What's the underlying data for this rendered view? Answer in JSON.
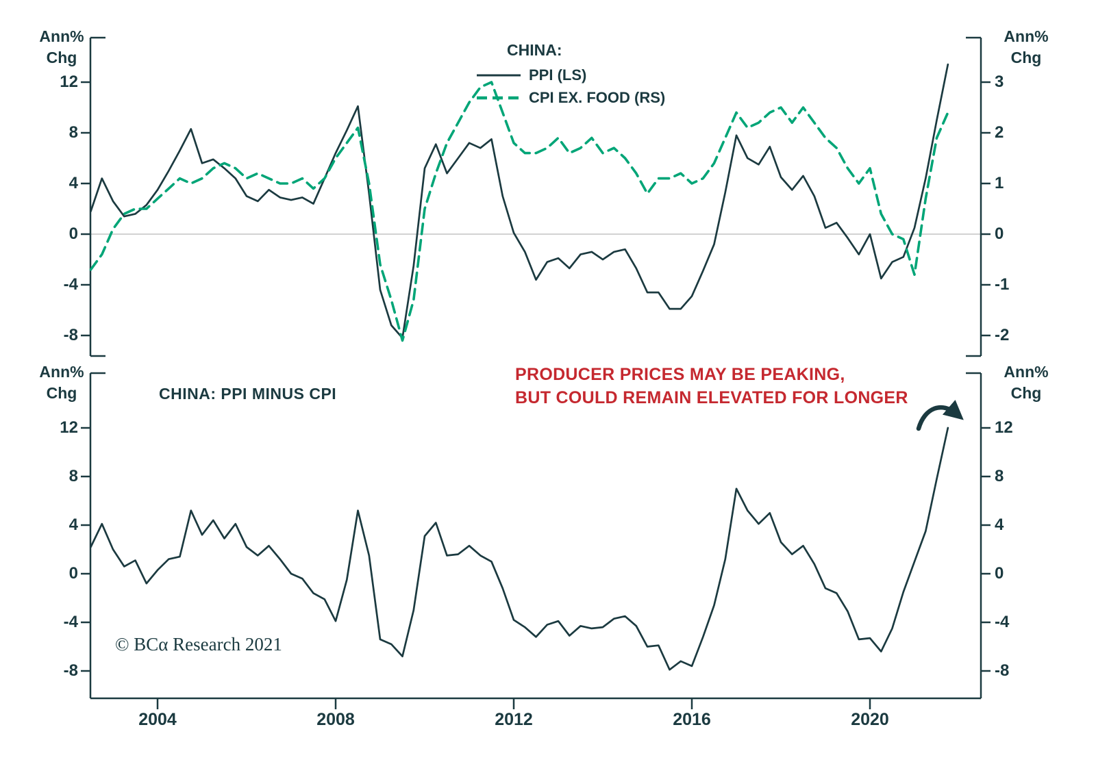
{
  "colors": {
    "dark": "#1B3A40",
    "green": "#00A577",
    "red": "#C5282F",
    "grid": "#C4C4C4"
  },
  "top_panel": {
    "axis_unit_label": [
      "Ann%",
      "Chg"
    ],
    "legend_title": "CHINA:",
    "legend": [
      {
        "label": "PPI (LS)"
      },
      {
        "label": "CPI EX. FOOD (RS)"
      }
    ]
  },
  "bottom_panel": {
    "title": "CHINA: PPI MINUS CPI",
    "axis_unit_label": [
      "Ann%",
      "Chg"
    ]
  },
  "annotation": {
    "line1": "PRODUCER PRICES MAY BE PEAKING,",
    "line2": "BUT COULD REMAIN ELEVATED FOR LONGER"
  },
  "copyright_text": "© BCα Research 2021",
  "chart_data": [
    {
      "type": "line",
      "panel": "top",
      "title": "CHINA: PPI vs CPI EX. FOOD",
      "x_start": 2002.5,
      "x_step": 0.25,
      "x_range": [
        2002.5,
        2022.4
      ],
      "left_axis": {
        "label": "Ann% Chg",
        "ticks": [
          12,
          8,
          4,
          0,
          -4,
          -8
        ]
      },
      "right_axis": {
        "label": "Ann% Chg",
        "ticks": [
          3,
          2,
          1,
          0,
          -1,
          -2
        ]
      },
      "grid": "zero-line-only",
      "legend_position": "top-center",
      "series": [
        {
          "name": "PPI (LS)",
          "axis": "left",
          "style": "solid",
          "values": [
            1.8,
            4.4,
            2.6,
            1.4,
            1.6,
            2.3,
            3.5,
            5.0,
            6.6,
            8.3,
            5.6,
            5.9,
            5.2,
            4.4,
            3.0,
            2.6,
            3.5,
            2.9,
            2.7,
            2.9,
            2.4,
            4.4,
            6.4,
            8.2,
            10.1,
            3.2,
            -4.4,
            -7.2,
            -8.2,
            -2.5,
            5.2,
            7.1,
            4.8,
            6.0,
            7.2,
            6.8,
            7.5,
            3.0,
            0.1,
            -1.4,
            -3.6,
            -2.2,
            -1.9,
            -2.7,
            -1.6,
            -1.4,
            -2.0,
            -1.4,
            -1.2,
            -2.7,
            -4.6,
            -4.6,
            -5.9,
            -5.9,
            -4.9,
            -2.9,
            -0.8,
            3.3,
            7.8,
            6.0,
            5.5,
            6.9,
            4.5,
            3.5,
            4.6,
            3.0,
            0.5,
            0.9,
            -0.3,
            -1.6,
            0.0,
            -3.5,
            -2.2,
            -1.8,
            0.5,
            4.4,
            9.0,
            13.4
          ]
        },
        {
          "name": "CPI EX. FOOD (RS)",
          "axis": "right",
          "style": "dashed",
          "values": [
            -0.7,
            -0.4,
            0.1,
            0.4,
            0.5,
            0.5,
            0.7,
            0.9,
            1.1,
            1.0,
            1.1,
            1.3,
            1.4,
            1.3,
            1.1,
            1.2,
            1.1,
            1.0,
            1.0,
            1.1,
            0.9,
            1.1,
            1.5,
            1.8,
            2.1,
            1.0,
            -0.6,
            -1.3,
            -2.1,
            -1.3,
            0.5,
            1.2,
            1.8,
            2.2,
            2.6,
            2.9,
            3.0,
            2.4,
            1.8,
            1.6,
            1.6,
            1.7,
            1.9,
            1.6,
            1.7,
            1.9,
            1.6,
            1.7,
            1.5,
            1.2,
            0.8,
            1.1,
            1.1,
            1.2,
            1.0,
            1.1,
            1.4,
            1.9,
            2.4,
            2.1,
            2.2,
            2.4,
            2.5,
            2.2,
            2.5,
            2.2,
            1.9,
            1.7,
            1.3,
            1.0,
            1.3,
            0.4,
            0.0,
            -0.1,
            -0.8,
            0.7,
            1.9,
            2.4
          ]
        }
      ]
    },
    {
      "type": "line",
      "panel": "bottom",
      "title": "CHINA: PPI MINUS CPI",
      "x_start": 2002.5,
      "x_step": 0.25,
      "x_range": [
        2002.5,
        2022.4
      ],
      "left_axis": {
        "label": "Ann% Chg",
        "ticks": [
          12,
          8,
          4,
          0,
          -4,
          -8
        ]
      },
      "right_axis": {
        "label": "Ann% Chg",
        "ticks": [
          12,
          8,
          4,
          0,
          -4,
          -8
        ]
      },
      "x_tick_labels": [
        2004,
        2008,
        2012,
        2016,
        2020
      ],
      "grid": "off",
      "series": [
        {
          "name": "PPI MINUS CPI",
          "axis": "left",
          "style": "solid",
          "values": [
            2.2,
            4.1,
            2.0,
            0.6,
            1.1,
            -0.8,
            0.3,
            1.2,
            1.4,
            5.2,
            3.2,
            4.4,
            2.9,
            4.1,
            2.2,
            1.5,
            2.3,
            1.2,
            0.0,
            -0.4,
            -1.6,
            -2.1,
            -3.9,
            -0.5,
            5.2,
            1.5,
            -5.4,
            -5.8,
            -6.8,
            -3.0,
            3.1,
            4.2,
            1.5,
            1.6,
            2.3,
            1.5,
            1.0,
            -1.2,
            -3.8,
            -4.4,
            -5.2,
            -4.2,
            -3.9,
            -5.1,
            -4.3,
            -4.5,
            -4.4,
            -3.7,
            -3.5,
            -4.3,
            -6.0,
            -5.9,
            -7.9,
            -7.2,
            -7.6,
            -5.2,
            -2.6,
            1.2,
            7.0,
            5.2,
            4.1,
            5.0,
            2.6,
            1.6,
            2.3,
            0.8,
            -1.2,
            -1.6,
            -3.1,
            -5.4,
            -5.3,
            -6.4,
            -4.5,
            -1.5,
            1.0,
            3.5,
            7.8,
            12.0
          ]
        }
      ]
    }
  ]
}
